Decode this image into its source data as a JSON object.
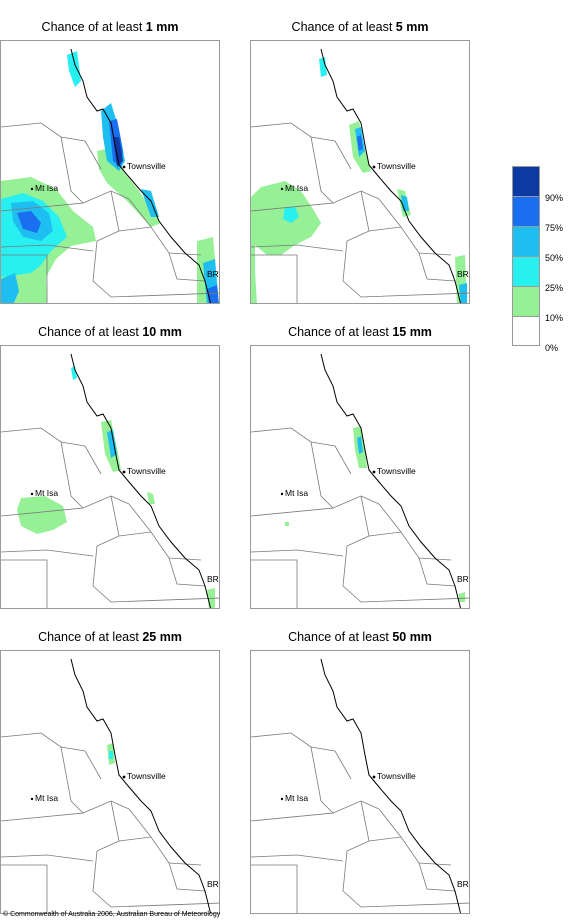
{
  "panels": [
    {
      "title_prefix": "Chance of at least ",
      "title_value": "1 mm"
    },
    {
      "title_prefix": "Chance of at least ",
      "title_value": "5 mm"
    },
    {
      "title_prefix": "Chance of at least ",
      "title_value": "10 mm"
    },
    {
      "title_prefix": "Chance of at least ",
      "title_value": "15 mm"
    },
    {
      "title_prefix": "Chance of at least ",
      "title_value": "25 mm"
    },
    {
      "title_prefix": "Chance of at least ",
      "title_value": "50 mm"
    }
  ],
  "places": {
    "townsville": "Townsville",
    "mt_isa": "Mt Isa",
    "brisbane": "BRIS"
  },
  "legend": {
    "ticks": [
      "90%",
      "75%",
      "50%",
      "25%",
      "10%",
      "0%"
    ],
    "colors": [
      "#0c3aa0",
      "#1a6ef0",
      "#1ebef0",
      "#28f0f0",
      "#96f096",
      "#ffffff"
    ]
  },
  "footer": "© Commonwealth of Australia 2006, Australian Bureau of Meteorology"
}
